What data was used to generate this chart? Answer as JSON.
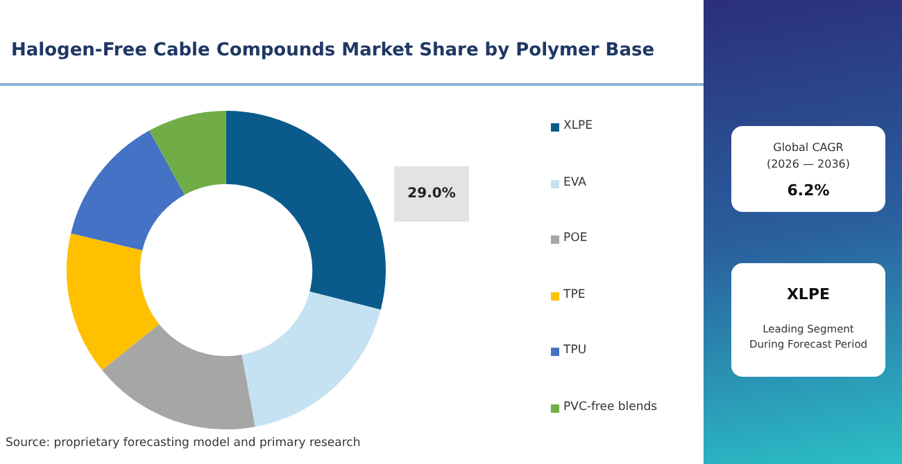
{
  "chart_data": {
    "type": "donut",
    "title": "Halogen-Free Cable Compounds Market Share by Polymer Base",
    "categories": [
      "XLPE",
      "EVA",
      "POE",
      "TPE",
      "TPU",
      "PVC-free blends"
    ],
    "values": [
      29.0,
      18.1,
      17.1,
      14.5,
      13.3,
      8.0
    ],
    "colors": [
      "#0b5a8c",
      "#c5e2f2",
      "#a6a6a6",
      "#ffc000",
      "#4472c4",
      "#70ad47"
    ],
    "value_labels": [
      "29.0%",
      null,
      null,
      null,
      null,
      null
    ],
    "legend": "right",
    "annotations": [
      "Global CAGR (2026 — 2036)",
      "6.2%",
      "XLPE",
      "Leading Segment During Forecast Period",
      "Source: proprietary forecasting model and primary research"
    ]
  }
}
